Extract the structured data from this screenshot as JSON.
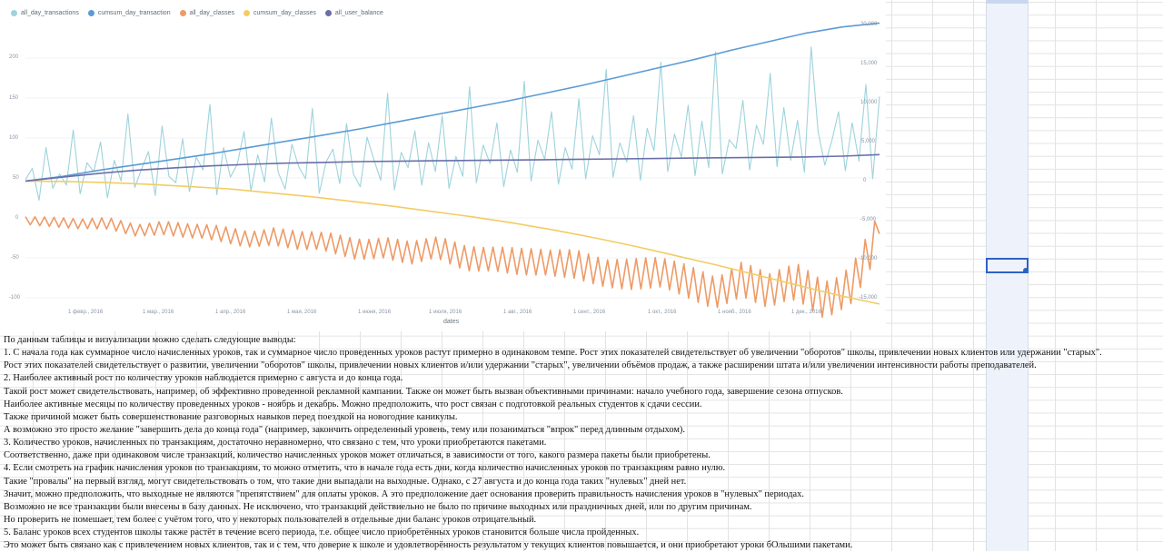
{
  "chart_data": {
    "type": "line",
    "xlabel": "dates",
    "x_tick_labels": [
      "1 февр., 2016",
      "1 мар., 2016",
      "1 апр., 2016",
      "1 мая, 2016",
      "1 июня, 2016",
      "1 июля, 2016",
      "1 авг., 2016",
      "1 сент., 2016",
      "1 окт., 2016",
      "1 нояб., 2016",
      "1 дек., 2016"
    ],
    "left_axis_ticks": [
      "200",
      "150",
      "100",
      "50",
      "0",
      "-50",
      "-100"
    ],
    "right_axis_ticks": [
      "20,000",
      "15,000",
      "10,000",
      "5,000",
      "0",
      "-5,000",
      "-10,000",
      "-15,000"
    ],
    "left_ylim": [
      -100,
      200
    ],
    "right_ylim": [
      -15000,
      20000
    ],
    "x_range": [
      "2016-01-01",
      "2016-12-31"
    ],
    "legend_position": "top-left",
    "series": [
      {
        "name": "all_day_transactions",
        "axis": "left",
        "color": "#9ed3dc",
        "values": [
          48,
          62,
          22,
          88,
          37,
          55,
          41,
          110,
          30,
          69,
          58,
          95,
          25,
          72,
          46,
          130,
          38,
          61,
          83,
          28,
          115,
          52,
          44,
          99,
          33,
          76,
          60,
          142,
          29,
          88,
          51,
          67,
          108,
          34,
          79,
          45,
          125,
          57,
          36,
          92,
          64,
          49,
          137,
          31,
          70,
          86,
          43,
          118,
          55,
          39,
          101,
          73,
          47,
          156,
          35,
          82,
          63,
          109,
          41,
          94,
          58,
          128,
          37,
          77,
          52,
          164,
          44,
          91,
          68,
          119,
          39,
          85,
          57,
          171,
          46,
          97,
          73,
          133,
          42,
          88,
          61,
          149,
          49,
          103,
          79,
          186,
          51,
          94,
          70,
          128,
          47,
          112,
          84,
          195,
          58,
          105,
          76,
          141,
          53,
          121,
          63,
          208,
          55,
          98,
          87,
          147,
          60,
          116,
          92,
          181,
          64,
          138,
          72,
          122,
          57,
          214,
          109,
          66,
          96,
          133,
          59,
          119,
          71,
          167,
          49,
          152
        ],
        "note": "approximate, read from chart"
      },
      {
        "name": "cumsum_day_transaction",
        "axis": "right",
        "color": "#5b9bd5",
        "values": [
          0,
          600,
          1400,
          2100,
          2800,
          3500,
          4300,
          5100,
          5900,
          6700,
          7600,
          8500,
          9400,
          10300,
          11300,
          12300,
          13400,
          14500,
          15600,
          16800,
          17900,
          19000,
          19800,
          20300
        ]
      },
      {
        "name": "all_day_classes",
        "axis": "left",
        "color": "#ee9a66",
        "values": [
          -2,
          -5,
          -9,
          -7,
          -14,
          -12,
          -18,
          -20,
          -25,
          -22,
          -30,
          -32,
          -38,
          -35,
          -45,
          -40,
          -50,
          -48,
          -55,
          -60,
          -58,
          -65,
          -70,
          -72,
          -80,
          -90,
          -75,
          -95,
          -82,
          -100,
          -80,
          -20
        ]
      },
      {
        "name": "cumsum_day_classes",
        "axis": "right",
        "color": "#f3cc62",
        "values": [
          0,
          -50,
          -200,
          -400,
          -700,
          -1000,
          -1500,
          -2000,
          -2600,
          -3200,
          -3900,
          -4600,
          -5400,
          -6300,
          -7300,
          -8400,
          -9600,
          -10800,
          -12100,
          -13400,
          -14700,
          -15800
        ]
      },
      {
        "name": "all_user_balance",
        "axis": "right",
        "color": "#6a6fa8",
        "values": [
          0,
          500,
          1000,
          1400,
          1700,
          1950,
          2150,
          2300,
          2400,
          2500,
          2550,
          2600,
          2650,
          2700,
          2750,
          2800,
          2850,
          2900,
          2950,
          3000,
          3050,
          3100,
          3200,
          3400
        ]
      }
    ]
  },
  "text": {
    "lines": [
      "По данным таблицы и визуализации можно сделать следующие выводы:",
      "1. С начала года как суммарное число начисленных уроков, так и суммарное число проведенных уроков растут примерно в одинаковом темпе. Рост этих показателей свидетельствует об увеличении \"оборотов\" школы, привлечении новых клиентов или удержании \"старых\".",
      "Рост этих показателей свидетельствует о развитии, увеличении \"оборотов\" школы, привлечении новых клиентов и/или удержании \"старых\", увеличении объёмов продаж, а также расширении штата и/или увеличении интенсивности работы преподавателей.",
      "2. Наиболее активный рост по количеству уроков наблюдается примерно с августа и до конца года.",
      "Такой рост может свидетельствовать, например, об эффективно проведенной рекламной кампании. Также он может быть вызван объективными причинами: начало учебного года, завершение сезона отпусков.",
      "Наиболее активные месяцы по количеству проведенных уроков - ноябрь и декабрь. Можно предположить, что рост связан с подготовкой реальных студентов к сдачи сессии.",
      "Также причиной может быть совершенствование разговорных навыков перед поездкой на новогодние каникулы.",
      "А возможно это просто желание \"завершить дела до конца года\" (например, закончить определенный уровень, тему или позаниматься \"впрок\" перед длинным отдыхом).",
      "3. Количество уроков, начисленных по транзакциям, достаточно неравномерно, что связано с тем, что уроки приобретаются пакетами.",
      "Соответственно, даже при одинаковом числе транзакций, количество начисленных уроков может отличаться, в зависимости от того, какого размера пакеты были приобретены.",
      "4. Если смотреть на график начисления уроков по транзакциям, то можно отметить, что в начале года есть дни, когда количество начисленных уроков по транзакциям равно нулю.",
      "Такие \"провалы\" на первый взгляд, могут свидетельствовать о том, что такие дни выпадали на выходные. Однако, с 27 августа и до конца года таких \"нулевых\" дней нет.",
      "Значит, можно предположить, что выходные не являются \"препятствием\" для оплаты уроков. А это предположение дает основания проверить правильность начисления уроков в \"нулевых\" периодах.",
      "Возможно не все транзакции были внесены в базу данных. Не исключено, что транзакций действиельно не было по причине выходных или праздничных дней, или по другим причинам.",
      "Но проверить не помешает, тем более с учётом того, что у некоторых пользователей в отдельные дни баланс уроков отрицательный.",
      "5. Баланс уроков всех студентов школы также растёт в течение всего периода, т.е. общее число приобретённых уроков становится больше числа пройденных.",
      "Это может быть связано как с привлечением новых клиентов, так и с тем, что доверие к школе и удовлетворённость результатом у текущих клиентов повышается, и они приобретают уроки бОльшими пакетами."
    ]
  }
}
